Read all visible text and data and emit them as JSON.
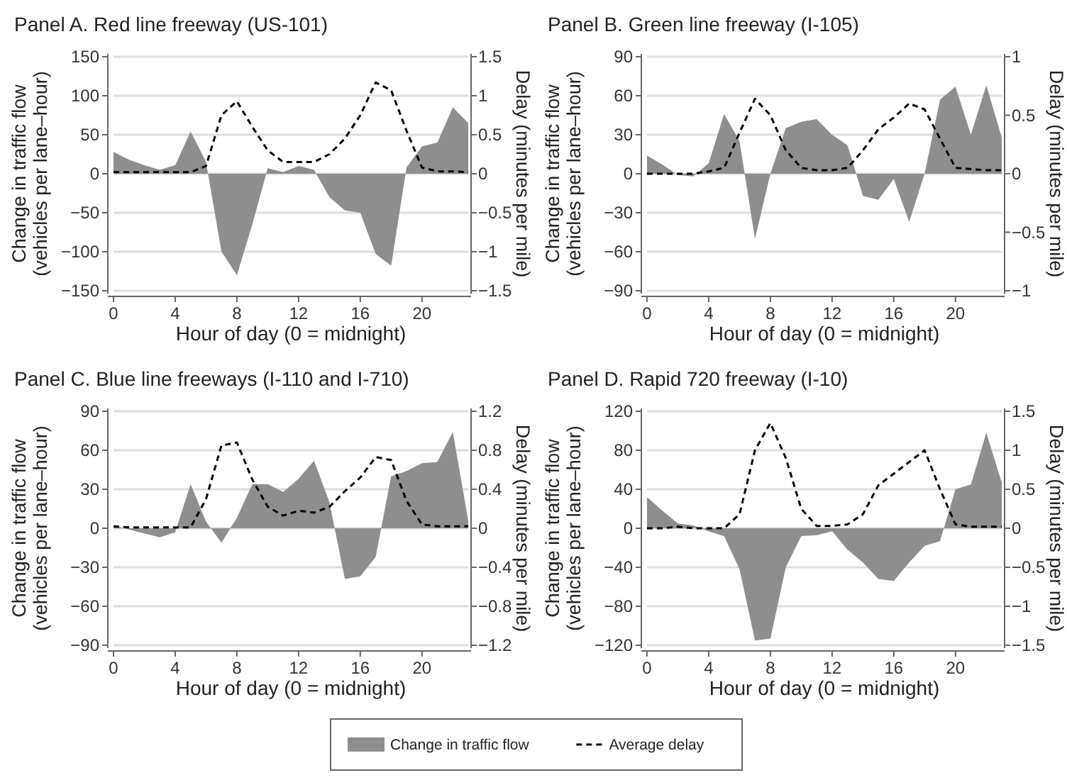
{
  "chart_data": [
    {
      "type": "area",
      "title": "Panel A. Red line freeway (US-101)",
      "xlabel": "Hour of day (0 = midnight)",
      "ylabel": "Change in traffic flow\n(vehicles per lane–hour)",
      "y2label": "Delay (minutes per mile)",
      "x": [
        0,
        1,
        2,
        3,
        4,
        5,
        6,
        7,
        8,
        9,
        10,
        11,
        12,
        13,
        14,
        15,
        16,
        17,
        18,
        19,
        20,
        21,
        22,
        23
      ],
      "xlim": [
        0,
        23
      ],
      "xticks": [
        0,
        4,
        8,
        12,
        16,
        20
      ],
      "ylim": [
        -150,
        150
      ],
      "yticks": [
        -150,
        -100,
        -50,
        0,
        50,
        100,
        150
      ],
      "y2lim": [
        -1.5,
        1.5
      ],
      "y2ticks": [
        -1.5,
        -1,
        -0.5,
        0,
        0.5,
        1,
        1.5
      ],
      "grid": "y",
      "legend": "bottom",
      "marker": "none",
      "series": [
        {
          "name": "Change in traffic flow",
          "color": "#8e8e8e",
          "values": [
            28,
            18,
            11,
            5,
            11,
            54,
            15,
            -100,
            -130,
            -65,
            7,
            2,
            10,
            5,
            -30,
            -47,
            -50,
            -103,
            -118,
            8,
            35,
            40,
            85,
            65
          ]
        },
        {
          "name": "Average delay",
          "type": "line",
          "axis": "y2",
          "color": "#000000",
          "line_style": "dashed",
          "values": [
            0.02,
            0.02,
            0.02,
            0.02,
            0.02,
            0.02,
            0.1,
            0.75,
            0.93,
            0.6,
            0.3,
            0.15,
            0.15,
            0.15,
            0.25,
            0.45,
            0.75,
            1.17,
            1.07,
            0.55,
            0.08,
            0.03,
            0.03,
            0.02
          ]
        }
      ]
    },
    {
      "type": "area",
      "title": "Panel B. Green line freeway (I-105)",
      "xlabel": "Hour of day (0 = midnight)",
      "ylabel": "Change in traffic flow\n(vehicles per lane–hour)",
      "y2label": "Delay (minutes per mile)",
      "x": [
        0,
        1,
        2,
        3,
        4,
        5,
        6,
        7,
        8,
        9,
        10,
        11,
        12,
        13,
        14,
        15,
        16,
        17,
        18,
        19,
        20,
        21,
        22,
        23
      ],
      "xlim": [
        0,
        23
      ],
      "xticks": [
        0,
        4,
        8,
        12,
        16,
        20
      ],
      "ylim": [
        -90,
        90
      ],
      "yticks": [
        -90,
        -60,
        -30,
        0,
        30,
        60,
        90
      ],
      "y2lim": [
        -1,
        1
      ],
      "y2ticks": [
        -1,
        -0.5,
        0,
        0.5,
        1
      ],
      "grid": "y",
      "marker": "none",
      "series": [
        {
          "color": "#8e8e8e",
          "values": [
            14,
            7,
            -1,
            -2,
            8,
            46,
            25,
            -50,
            0,
            35,
            40,
            42,
            30,
            22,
            -17,
            -20,
            -4,
            -37,
            0,
            57,
            67,
            30,
            68,
            28
          ]
        },
        {
          "type": "line",
          "axis": "y2",
          "color": "#000000",
          "line_style": "dashed",
          "values": [
            0,
            0,
            0,
            0,
            0.02,
            0.05,
            0.35,
            0.64,
            0.5,
            0.2,
            0.05,
            0.03,
            0.03,
            0.05,
            0.2,
            0.38,
            0.48,
            0.6,
            0.55,
            0.3,
            0.05,
            0.04,
            0.03,
            0.03
          ]
        }
      ]
    },
    {
      "type": "area",
      "title": "Panel C. Blue line freeways (I-110 and I-710)",
      "xlabel": "Hour of day (0 = midnight)",
      "ylabel": "Change in traffic flow\n(vehicles per lane–hour)",
      "y2label": "Delay (minutes per mile)",
      "x": [
        0,
        1,
        2,
        3,
        4,
        5,
        6,
        7,
        8,
        9,
        10,
        11,
        12,
        13,
        14,
        15,
        16,
        17,
        18,
        19,
        20,
        21,
        22,
        23
      ],
      "xlim": [
        0,
        23
      ],
      "xticks": [
        0,
        4,
        8,
        12,
        16,
        20
      ],
      "ylim": [
        -90,
        90
      ],
      "yticks": [
        -90,
        -60,
        -30,
        0,
        30,
        60,
        90
      ],
      "y2lim": [
        -1.2,
        1.2
      ],
      "y2ticks": [
        -1.2,
        -0.8,
        -0.4,
        0,
        0.4,
        0.8,
        1.2
      ],
      "grid": "y",
      "marker": "none",
      "series": [
        {
          "color": "#8e8e8e",
          "values": [
            2,
            -1,
            -4,
            -7,
            -3,
            34,
            5,
            -11,
            8,
            34,
            34,
            28,
            38,
            52,
            20,
            -39,
            -37,
            -22,
            40,
            44,
            50,
            51,
            74,
            6
          ]
        },
        {
          "type": "line",
          "axis": "y2",
          "color": "#000000",
          "line_style": "dashed",
          "values": [
            0.02,
            0.01,
            0.01,
            0.01,
            0.01,
            0.01,
            0.3,
            0.85,
            0.88,
            0.5,
            0.22,
            0.13,
            0.18,
            0.16,
            0.22,
            0.38,
            0.52,
            0.73,
            0.7,
            0.28,
            0.04,
            0.02,
            0.02,
            0.02
          ]
        }
      ]
    },
    {
      "type": "area",
      "title": "Panel D. Rapid 720 freeway (I-10)",
      "xlabel": "Hour of day (0 = midnight)",
      "ylabel": "Change in traffic flow\n(vehicles per lane–hour)",
      "y2label": "Delay (minutes per mile)",
      "x": [
        0,
        1,
        2,
        3,
        4,
        5,
        6,
        7,
        8,
        9,
        10,
        11,
        12,
        13,
        14,
        15,
        16,
        17,
        18,
        19,
        20,
        21,
        22,
        23
      ],
      "xlim": [
        0,
        23
      ],
      "xticks": [
        0,
        4,
        8,
        12,
        16,
        20
      ],
      "ylim": [
        -120,
        120
      ],
      "yticks": [
        -120,
        -80,
        -40,
        0,
        40,
        80,
        120
      ],
      "y2lim": [
        -1.5,
        1.5
      ],
      "y2ticks": [
        -1.5,
        -1,
        -0.5,
        0,
        0.5,
        1,
        1.5
      ],
      "grid": "y",
      "marker": "none",
      "series": [
        {
          "color": "#8e8e8e",
          "values": [
            32,
            18,
            5,
            3,
            -3,
            -8,
            -42,
            -115,
            -113,
            -40,
            -8,
            -7,
            -3,
            -22,
            -35,
            -52,
            -54,
            -35,
            -18,
            -13,
            40,
            45,
            98,
            47
          ]
        },
        {
          "type": "line",
          "axis": "y2",
          "color": "#000000",
          "line_style": "dashed",
          "values": [
            0,
            0,
            0.02,
            0,
            0,
            0,
            0.18,
            1.0,
            1.35,
            0.9,
            0.25,
            0.03,
            0.03,
            0.05,
            0.18,
            0.55,
            0.7,
            0.85,
            1.0,
            0.5,
            0.05,
            0.02,
            0.02,
            0.02
          ]
        }
      ]
    }
  ]
}
